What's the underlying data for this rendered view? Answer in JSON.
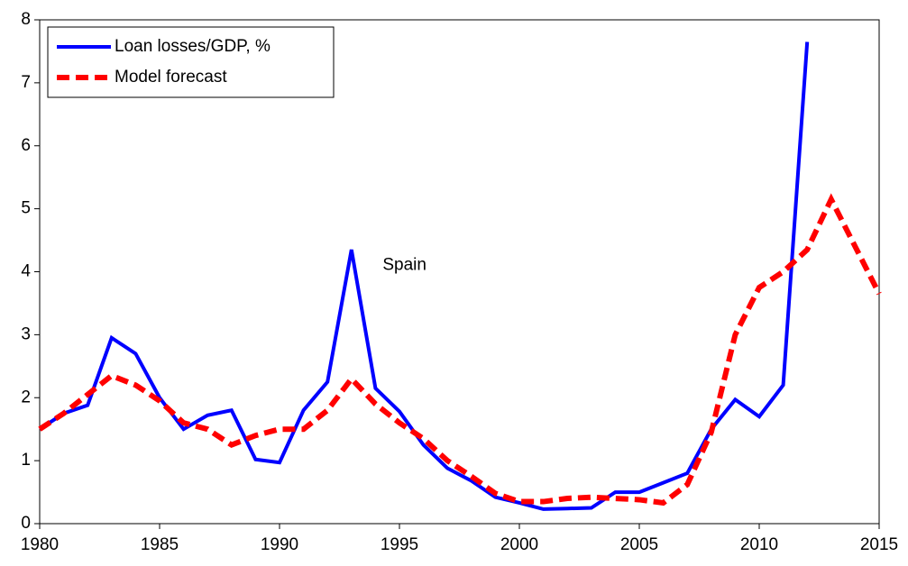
{
  "chart_data": {
    "type": "line",
    "annotation": "Spain",
    "x": [
      1980,
      1981,
      1982,
      1983,
      1984,
      1985,
      1986,
      1987,
      1988,
      1989,
      1990,
      1991,
      1992,
      1993,
      1994,
      1995,
      1996,
      1997,
      1998,
      1999,
      2000,
      2001,
      2002,
      2003,
      2004,
      2005,
      2006,
      2007,
      2008,
      2009,
      2010,
      2011,
      2012,
      2013,
      2014,
      2015
    ],
    "series": [
      {
        "name": "Loan losses/GDP, %",
        "color": "#0000ff",
        "dashed": false,
        "values": [
          1.5,
          1.75,
          1.88,
          2.95,
          2.7,
          2.0,
          1.5,
          1.72,
          1.8,
          1.02,
          0.97,
          1.8,
          2.25,
          4.35,
          2.15,
          1.78,
          1.25,
          0.88,
          0.68,
          0.42,
          0.33,
          0.23,
          0.24,
          0.25,
          0.5,
          0.5,
          0.65,
          0.8,
          1.5,
          1.97,
          1.7,
          2.2,
          7.65,
          null,
          null,
          null
        ]
      },
      {
        "name": "Model forecast",
        "color": "#ff0000",
        "dashed": true,
        "values": [
          1.5,
          1.75,
          2.05,
          2.35,
          2.2,
          1.95,
          1.6,
          1.5,
          1.25,
          1.4,
          1.5,
          1.5,
          1.8,
          2.3,
          1.9,
          1.6,
          1.35,
          1.0,
          0.75,
          0.48,
          0.35,
          0.35,
          0.4,
          0.42,
          0.4,
          0.38,
          0.33,
          0.62,
          1.45,
          3.0,
          3.75,
          4.0,
          4.35,
          5.15,
          4.4,
          3.65
        ]
      }
    ],
    "xlim": [
      1980,
      2015
    ],
    "xticks": [
      1980,
      1985,
      1990,
      1995,
      2000,
      2005,
      2010,
      2015
    ],
    "ylim": [
      0,
      8
    ],
    "yticks": [
      0,
      1,
      2,
      3,
      4,
      5,
      6,
      7,
      8
    ],
    "grid": false,
    "legend": "upper-left"
  }
}
